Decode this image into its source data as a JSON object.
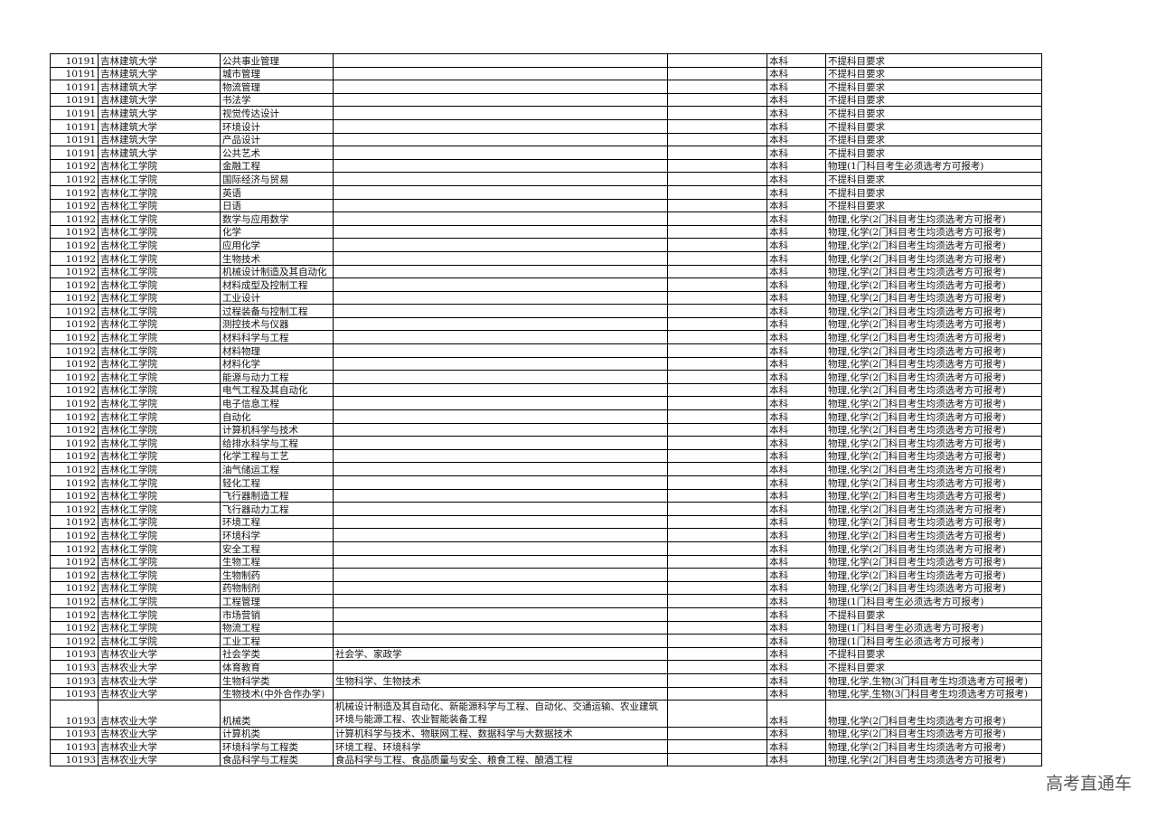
{
  "table": {
    "rows": [
      {
        "code": "10191",
        "school": "吉林建筑大学",
        "major": "公共事业管理",
        "level": "本科",
        "requirement": "不提科目要求"
      },
      {
        "code": "10191",
        "school": "吉林建筑大学",
        "major": "城市管理",
        "level": "本科",
        "requirement": "不提科目要求"
      },
      {
        "code": "10191",
        "school": "吉林建筑大学",
        "major": "物流管理",
        "level": "本科",
        "requirement": "不提科目要求"
      },
      {
        "code": "10191",
        "school": "吉林建筑大学",
        "major": "书法学",
        "level": "本科",
        "requirement": "不提科目要求"
      },
      {
        "code": "10191",
        "school": "吉林建筑大学",
        "major": "视觉传达设计",
        "level": "本科",
        "requirement": "不提科目要求"
      },
      {
        "code": "10191",
        "school": "吉林建筑大学",
        "major": "环境设计",
        "level": "本科",
        "requirement": "不提科目要求"
      },
      {
        "code": "10191",
        "school": "吉林建筑大学",
        "major": "产品设计",
        "level": "本科",
        "requirement": "不提科目要求"
      },
      {
        "code": "10191",
        "school": "吉林建筑大学",
        "major": "公共艺术",
        "level": "本科",
        "requirement": "不提科目要求"
      },
      {
        "code": "10192",
        "school": "吉林化工学院",
        "major": "金融工程",
        "level": "本科",
        "requirement": "物理(1门科目考生必须选考方可报考)"
      },
      {
        "code": "10192",
        "school": "吉林化工学院",
        "major": "国际经济与贸易",
        "level": "本科",
        "requirement": "不提科目要求"
      },
      {
        "code": "10192",
        "school": "吉林化工学院",
        "major": "英语",
        "level": "本科",
        "requirement": "不提科目要求"
      },
      {
        "code": "10192",
        "school": "吉林化工学院",
        "major": "日语",
        "level": "本科",
        "requirement": "不提科目要求"
      },
      {
        "code": "10192",
        "school": "吉林化工学院",
        "major": "数学与应用数学",
        "level": "本科",
        "requirement": "物理,化学(2门科目考生均须选考方可报考)"
      },
      {
        "code": "10192",
        "school": "吉林化工学院",
        "major": "化学",
        "level": "本科",
        "requirement": "物理,化学(2门科目考生均须选考方可报考)"
      },
      {
        "code": "10192",
        "school": "吉林化工学院",
        "major": "应用化学",
        "level": "本科",
        "requirement": "物理,化学(2门科目考生均须选考方可报考)"
      },
      {
        "code": "10192",
        "school": "吉林化工学院",
        "major": "生物技术",
        "level": "本科",
        "requirement": "物理,化学(2门科目考生均须选考方可报考)"
      },
      {
        "code": "10192",
        "school": "吉林化工学院",
        "major": "机械设计制造及其自动化",
        "level": "本科",
        "requirement": "物理,化学(2门科目考生均须选考方可报考)"
      },
      {
        "code": "10192",
        "school": "吉林化工学院",
        "major": "材料成型及控制工程",
        "level": "本科",
        "requirement": "物理,化学(2门科目考生均须选考方可报考)"
      },
      {
        "code": "10192",
        "school": "吉林化工学院",
        "major": "工业设计",
        "level": "本科",
        "requirement": "物理,化学(2门科目考生均须选考方可报考)"
      },
      {
        "code": "10192",
        "school": "吉林化工学院",
        "major": "过程装备与控制工程",
        "level": "本科",
        "requirement": "物理,化学(2门科目考生均须选考方可报考)"
      },
      {
        "code": "10192",
        "school": "吉林化工学院",
        "major": "测控技术与仪器",
        "level": "本科",
        "requirement": "物理,化学(2门科目考生均须选考方可报考)"
      },
      {
        "code": "10192",
        "school": "吉林化工学院",
        "major": "材料科学与工程",
        "level": "本科",
        "requirement": "物理,化学(2门科目考生均须选考方可报考)"
      },
      {
        "code": "10192",
        "school": "吉林化工学院",
        "major": "材料物理",
        "level": "本科",
        "requirement": "物理,化学(2门科目考生均须选考方可报考)"
      },
      {
        "code": "10192",
        "school": "吉林化工学院",
        "major": "材料化学",
        "level": "本科",
        "requirement": "物理,化学(2门科目考生均须选考方可报考)"
      },
      {
        "code": "10192",
        "school": "吉林化工学院",
        "major": "能源与动力工程",
        "level": "本科",
        "requirement": "物理,化学(2门科目考生均须选考方可报考)"
      },
      {
        "code": "10192",
        "school": "吉林化工学院",
        "major": "电气工程及其自动化",
        "level": "本科",
        "requirement": "物理,化学(2门科目考生均须选考方可报考)"
      },
      {
        "code": "10192",
        "school": "吉林化工学院",
        "major": "电子信息工程",
        "level": "本科",
        "requirement": "物理,化学(2门科目考生均须选考方可报考)"
      },
      {
        "code": "10192",
        "school": "吉林化工学院",
        "major": "自动化",
        "level": "本科",
        "requirement": "物理,化学(2门科目考生均须选考方可报考)"
      },
      {
        "code": "10192",
        "school": "吉林化工学院",
        "major": "计算机科学与技术",
        "level": "本科",
        "requirement": "物理,化学(2门科目考生均须选考方可报考)"
      },
      {
        "code": "10192",
        "school": "吉林化工学院",
        "major": "给排水科学与工程",
        "level": "本科",
        "requirement": "物理,化学(2门科目考生均须选考方可报考)"
      },
      {
        "code": "10192",
        "school": "吉林化工学院",
        "major": "化学工程与工艺",
        "level": "本科",
        "requirement": "物理,化学(2门科目考生均须选考方可报考)"
      },
      {
        "code": "10192",
        "school": "吉林化工学院",
        "major": "油气储运工程",
        "level": "本科",
        "requirement": "物理,化学(2门科目考生均须选考方可报考)"
      },
      {
        "code": "10192",
        "school": "吉林化工学院",
        "major": "轻化工程",
        "level": "本科",
        "requirement": "物理,化学(2门科目考生均须选考方可报考)"
      },
      {
        "code": "10192",
        "school": "吉林化工学院",
        "major": "飞行器制造工程",
        "level": "本科",
        "requirement": "物理,化学(2门科目考生均须选考方可报考)"
      },
      {
        "code": "10192",
        "school": "吉林化工学院",
        "major": "飞行器动力工程",
        "level": "本科",
        "requirement": "物理,化学(2门科目考生均须选考方可报考)"
      },
      {
        "code": "10192",
        "school": "吉林化工学院",
        "major": "环境工程",
        "level": "本科",
        "requirement": "物理,化学(2门科目考生均须选考方可报考)"
      },
      {
        "code": "10192",
        "school": "吉林化工学院",
        "major": "环境科学",
        "level": "本科",
        "requirement": "物理,化学(2门科目考生均须选考方可报考)"
      },
      {
        "code": "10192",
        "school": "吉林化工学院",
        "major": "安全工程",
        "level": "本科",
        "requirement": "物理,化学(2门科目考生均须选考方可报考)"
      },
      {
        "code": "10192",
        "school": "吉林化工学院",
        "major": "生物工程",
        "level": "本科",
        "requirement": "物理,化学(2门科目考生均须选考方可报考)"
      },
      {
        "code": "10192",
        "school": "吉林化工学院",
        "major": "生物制药",
        "level": "本科",
        "requirement": "物理,化学(2门科目考生均须选考方可报考)"
      },
      {
        "code": "10192",
        "school": "吉林化工学院",
        "major": "药物制剂",
        "level": "本科",
        "requirement": "物理,化学(2门科目考生均须选考方可报考)"
      },
      {
        "code": "10192",
        "school": "吉林化工学院",
        "major": "工程管理",
        "level": "本科",
        "requirement": "物理(1门科目考生必须选考方可报考)"
      },
      {
        "code": "10192",
        "school": "吉林化工学院",
        "major": "市场营销",
        "level": "本科",
        "requirement": "不提科目要求"
      },
      {
        "code": "10192",
        "school": "吉林化工学院",
        "major": "物流工程",
        "level": "本科",
        "requirement": "物理(1门科目考生必须选考方可报考)"
      },
      {
        "code": "10192",
        "school": "吉林化工学院",
        "major": "工业工程",
        "level": "本科",
        "requirement": "物理(1门科目考生必须选考方可报考)"
      },
      {
        "code": "10193",
        "school": "吉林农业大学",
        "major": "社会学类",
        "includes": "社会学、家政学",
        "level": "本科",
        "requirement": "不提科目要求"
      },
      {
        "code": "10193",
        "school": "吉林农业大学",
        "major": "体育教育",
        "level": "本科",
        "requirement": "不提科目要求"
      },
      {
        "code": "10193",
        "school": "吉林农业大学",
        "major": "生物科学类",
        "includes": "生物科学、生物技术",
        "level": "本科",
        "requirement": "物理,化学,生物(3门科目考生均须选考方可报考)"
      },
      {
        "code": "10193",
        "school": "吉林农业大学",
        "major": "生物技术(中外合作办学)",
        "level": "本科",
        "requirement": "物理,化学,生物(3门科目考生均须选考方可报考)"
      },
      {
        "code": "10193",
        "school": "吉林农业大学",
        "major": "机械类",
        "includes": "机械设计制造及其自动化、新能源科学与工程、自动化、交通运输、农业建筑环境与能源工程、农业智能装备工程",
        "level": "本科",
        "requirement": "物理,化学(2门科目考生均须选考方可报考)"
      },
      {
        "code": "10193",
        "school": "吉林农业大学",
        "major": "计算机类",
        "includes": "计算机科学与技术、物联网工程、数据科学与大数据技术",
        "level": "本科",
        "requirement": "物理,化学(2门科目考生均须选考方可报考)"
      },
      {
        "code": "10193",
        "school": "吉林农业大学",
        "major": "环境科学与工程类",
        "includes": "环境工程、环境科学",
        "level": "本科",
        "requirement": "物理,化学(2门科目考生均须选考方可报考)"
      },
      {
        "code": "10193",
        "school": "吉林农业大学",
        "major": "食品科学与工程类",
        "includes": "食品科学与工程、食品质量与安全、粮食工程、酿酒工程",
        "level": "本科",
        "requirement": "物理,化学(2门科目考生均须选考方可报考)"
      }
    ]
  },
  "watermark": "高考直通车"
}
